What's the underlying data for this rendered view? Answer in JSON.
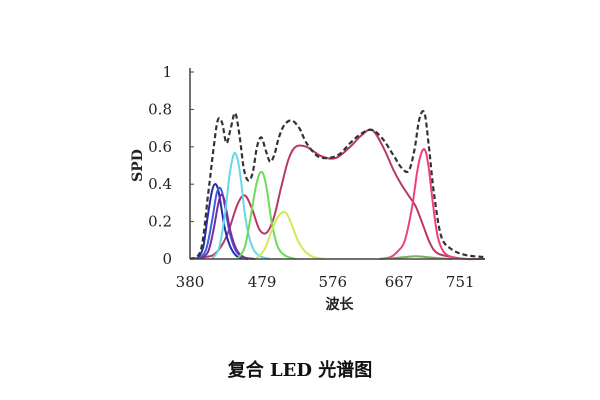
{
  "caption": "复合 LED 光谱图",
  "chart_data": {
    "type": "line",
    "title": "",
    "xlabel": "波长",
    "ylabel": "SPD",
    "xlim": [
      380,
      785
    ],
    "ylim": [
      0,
      1
    ],
    "x_ticks": [
      380,
      479,
      576,
      667,
      751
    ],
    "y_ticks": [
      0,
      0.2,
      0.4,
      0.6,
      0.8,
      1
    ],
    "y_tick_labels": [
      "0",
      "0.2",
      "0.4",
      "0.6",
      "0.8",
      "1"
    ],
    "grid": false,
    "legend": "none",
    "series": [
      {
        "color": "#333333",
        "style": "dashed",
        "x": [
          380,
          395,
          405,
          412,
          418,
          424,
          430,
          436,
          442,
          448,
          454,
          460,
          466,
          472,
          478,
          484,
          490,
          496,
          502,
          510,
          520,
          530,
          540,
          555,
          570,
          585,
          600,
          615,
          630,
          645,
          660,
          670,
          680,
          688,
          695,
          702,
          708,
          715,
          725,
          740,
          760,
          785
        ],
        "y": [
          0.0,
          0.05,
          0.35,
          0.58,
          0.74,
          0.73,
          0.62,
          0.7,
          0.78,
          0.66,
          0.48,
          0.42,
          0.46,
          0.6,
          0.65,
          0.58,
          0.52,
          0.56,
          0.65,
          0.72,
          0.74,
          0.7,
          0.62,
          0.55,
          0.54,
          0.56,
          0.62,
          0.67,
          0.69,
          0.64,
          0.55,
          0.49,
          0.47,
          0.58,
          0.75,
          0.78,
          0.6,
          0.35,
          0.12,
          0.05,
          0.02,
          0.01
        ]
      },
      {
        "color": "#b8386a",
        "style": "solid",
        "x": [
          380,
          400,
          415,
          430,
          445,
          455,
          465,
          475,
          485,
          495,
          505,
          515,
          525,
          540,
          560,
          580,
          600,
          615,
          630,
          645,
          660,
          670,
          680,
          690,
          700,
          710,
          720,
          740,
          760,
          785
        ],
        "y": [
          0.0,
          0.01,
          0.03,
          0.12,
          0.29,
          0.34,
          0.27,
          0.16,
          0.14,
          0.22,
          0.38,
          0.53,
          0.6,
          0.6,
          0.55,
          0.54,
          0.6,
          0.66,
          0.69,
          0.6,
          0.47,
          0.4,
          0.34,
          0.28,
          0.18,
          0.08,
          0.03,
          0.01,
          0.0,
          0.0
        ]
      },
      {
        "color": "#f0407a",
        "style": "solid",
        "x": [
          640,
          655,
          665,
          675,
          685,
          692,
          698,
          703,
          708,
          714,
          720,
          728,
          740,
          760
        ],
        "y": [
          0.0,
          0.01,
          0.04,
          0.1,
          0.28,
          0.47,
          0.57,
          0.58,
          0.48,
          0.28,
          0.12,
          0.04,
          0.01,
          0.0
        ]
      },
      {
        "color": "#2a2aa8",
        "style": "solid",
        "x": [
          390,
          398,
          404,
          410,
          414,
          418,
          422,
          428,
          436,
          446,
          460
        ],
        "y": [
          0.0,
          0.06,
          0.22,
          0.36,
          0.4,
          0.38,
          0.3,
          0.16,
          0.06,
          0.01,
          0.0
        ]
      },
      {
        "color": "#4060d8",
        "style": "solid",
        "x": [
          392,
          402,
          410,
          416,
          420,
          424,
          428,
          434,
          442,
          452,
          466
        ],
        "y": [
          0.0,
          0.05,
          0.2,
          0.34,
          0.38,
          0.36,
          0.28,
          0.15,
          0.05,
          0.01,
          0.0
        ]
      },
      {
        "color": "#7a2aa0",
        "style": "solid",
        "x": [
          395,
          405,
          412,
          418,
          422,
          426,
          430,
          436,
          444,
          454,
          470
        ],
        "y": [
          0.0,
          0.04,
          0.15,
          0.28,
          0.34,
          0.33,
          0.26,
          0.14,
          0.05,
          0.01,
          0.0
        ]
      },
      {
        "color": "#66d8e6",
        "style": "solid",
        "x": [
          410,
          420,
          428,
          434,
          440,
          445,
          450,
          456,
          464,
          474,
          490
        ],
        "y": [
          0.0,
          0.06,
          0.24,
          0.44,
          0.56,
          0.54,
          0.42,
          0.22,
          0.08,
          0.02,
          0.0
        ]
      },
      {
        "color": "#6add56",
        "style": "solid",
        "x": [
          445,
          455,
          463,
          470,
          476,
          481,
          486,
          492,
          500,
          510,
          525
        ],
        "y": [
          0.0,
          0.06,
          0.22,
          0.38,
          0.46,
          0.45,
          0.36,
          0.2,
          0.07,
          0.02,
          0.0
        ]
      },
      {
        "color": "#d0ea56",
        "style": "solid",
        "x": [
          470,
          482,
          492,
          500,
          507,
          513,
          520,
          528,
          538,
          550,
          566
        ],
        "y": [
          0.0,
          0.05,
          0.15,
          0.22,
          0.25,
          0.24,
          0.18,
          0.1,
          0.04,
          0.01,
          0.0
        ]
      },
      {
        "color": "#7ab05a",
        "style": "solid",
        "x": [
          640,
          660,
          675,
          690,
          705,
          720,
          740
        ],
        "y": [
          0.0,
          0.005,
          0.01,
          0.015,
          0.01,
          0.005,
          0.0
        ]
      }
    ]
  }
}
